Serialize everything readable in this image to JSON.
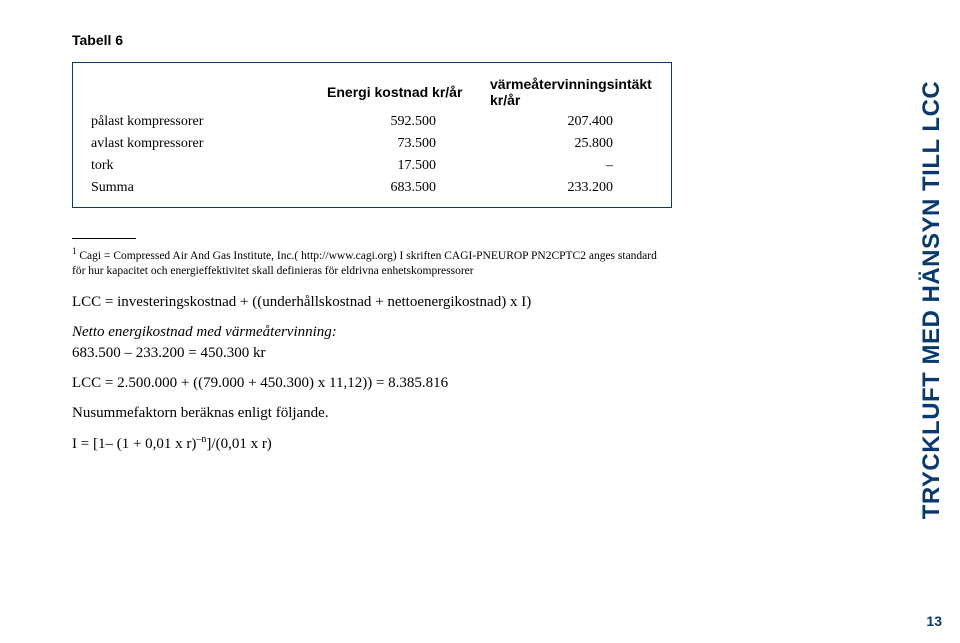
{
  "colors": {
    "brand": "#0a3a6d",
    "text": "#000000",
    "background": "#ffffff"
  },
  "tabell_label": "Tabell 6",
  "table": {
    "headers": {
      "label": "",
      "col_a": "Energi kostnad kr/år",
      "col_b": "värmeåtervinningsintäkt kr/år"
    },
    "rows": [
      {
        "label": "pålast kompressorer",
        "a": "592.500",
        "b": "207.400"
      },
      {
        "label": "avlast kompressorer",
        "a": "73.500",
        "b": "25.800"
      },
      {
        "label": "tork",
        "a": "17.500",
        "b": "–"
      },
      {
        "label": "Summa",
        "a": "683.500",
        "b": "233.200"
      }
    ]
  },
  "footnote": {
    "marker": "1",
    "text": " Cagi = Compressed Air And Gas Institute, Inc.( http://www.cagi.org) I skriften CAGI-PNEUROP PN2CPTC2 anges standard för hur kapacitet och energieffektivitet skall definieras för eldrivna enhetskompressorer"
  },
  "body": {
    "p1": "LCC = investeringskostnad + ((underhållskostnad + nettoenergikostnad) x I)",
    "p2_italic": "Netto energikostnad med värmeåtervinning:",
    "p2_rest": "683.500 – 233.200 = 450.300 kr",
    "p3": "LCC = 2.500.000 + ((79.000 + 450.300) x 11,12)) = 8.385.816",
    "p4": "Nusummefaktorn beräknas enligt följande.",
    "p5_pre": "I = [1– (1 + 0,01 x r)",
    "p5_sup": "–n",
    "p5_post": "]/(0,01 x r)"
  },
  "sidebar": "TRYCKLUFT MED HÄNSYN TILL LCC",
  "page_number": "13"
}
